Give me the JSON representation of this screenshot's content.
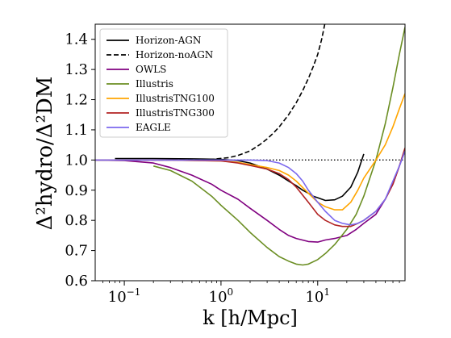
{
  "chart_data": {
    "type": "line",
    "xscale": "log",
    "xlim": [
      0.05,
      80
    ],
    "ylim": [
      0.6,
      1.45
    ],
    "xlabel": "k [h/Mpc]",
    "ylabel": "Δ²hydro/Δ²DM",
    "xticks": [
      {
        "value": 0.1,
        "base": "10",
        "exp": "−1"
      },
      {
        "value": 1,
        "base": "10",
        "exp": "0"
      },
      {
        "value": 10,
        "base": "10",
        "exp": "1"
      }
    ],
    "yticks": [
      "0.6",
      "0.7",
      "0.8",
      "0.9",
      "1.0",
      "1.1",
      "1.2",
      "1.3",
      "1.4"
    ],
    "reference_line": {
      "y": 1.0,
      "style": "dotted",
      "color": "#000000"
    },
    "legend_position": "top-left",
    "series": [
      {
        "name": "Horizon-AGN",
        "color": "#000000",
        "dash": "solid",
        "x": [
          0.08,
          0.2,
          0.5,
          1.0,
          1.5,
          2.0,
          3.0,
          4.0,
          5.0,
          6.0,
          7.0,
          8.0,
          9.0,
          10.0,
          12.0,
          15.0,
          18.0,
          22.0,
          26.0,
          30.0
        ],
        "y": [
          1.005,
          1.005,
          1.004,
          1.002,
          0.998,
          0.99,
          0.97,
          0.95,
          0.93,
          0.915,
          0.9,
          0.89,
          0.88,
          0.875,
          0.866,
          0.868,
          0.88,
          0.91,
          0.96,
          1.02
        ]
      },
      {
        "name": "Horizon-noAGN",
        "color": "#000000",
        "dash": "dashed",
        "x": [
          0.08,
          0.3,
          0.8,
          1.2,
          1.5,
          2.0,
          2.5,
          3.0,
          3.5,
          4.0,
          5.0,
          6.0,
          7.0,
          8.0,
          9.0,
          10.0,
          11.0,
          12.0
        ],
        "y": [
          1.0,
          1.0,
          1.002,
          1.008,
          1.015,
          1.03,
          1.05,
          1.07,
          1.09,
          1.11,
          1.15,
          1.19,
          1.23,
          1.27,
          1.31,
          1.35,
          1.4,
          1.46
        ]
      },
      {
        "name": "OWLS",
        "color": "#800080",
        "dash": "solid",
        "x": [
          0.05,
          0.1,
          0.2,
          0.3,
          0.5,
          0.8,
          1.0,
          1.5,
          2.0,
          3.0,
          4.0,
          5.0,
          6.0,
          8.0,
          10.0,
          12.0,
          15.0,
          20.0,
          25.0,
          30.0,
          40.0,
          50.0,
          60.0,
          70.0,
          80.0
        ],
        "y": [
          1.0,
          0.998,
          0.99,
          0.975,
          0.95,
          0.92,
          0.9,
          0.87,
          0.84,
          0.8,
          0.77,
          0.75,
          0.74,
          0.73,
          0.728,
          0.735,
          0.74,
          0.75,
          0.77,
          0.79,
          0.82,
          0.87,
          0.92,
          0.98,
          1.03
        ]
      },
      {
        "name": "Illustris",
        "color": "#6b8e23",
        "dash": "solid",
        "x": [
          0.2,
          0.3,
          0.5,
          0.8,
          1.0,
          1.5,
          2.0,
          3.0,
          4.0,
          5.0,
          6.0,
          7.0,
          8.0,
          10.0,
          12.0,
          15.0,
          20.0,
          25.0,
          30.0,
          40.0,
          50.0,
          60.0,
          70.0,
          80.0
        ],
        "y": [
          0.98,
          0.965,
          0.93,
          0.88,
          0.85,
          0.8,
          0.76,
          0.71,
          0.68,
          0.665,
          0.655,
          0.652,
          0.655,
          0.67,
          0.69,
          0.72,
          0.77,
          0.82,
          0.88,
          1.0,
          1.12,
          1.24,
          1.35,
          1.44
        ]
      },
      {
        "name": "IllustrisTNG100",
        "color": "#ffa500",
        "dash": "solid",
        "x": [
          0.05,
          0.3,
          1.0,
          1.5,
          2.0,
          3.0,
          4.0,
          5.0,
          6.0,
          8.0,
          10.0,
          12.0,
          15.0,
          18.0,
          22.0,
          26.0,
          30.0,
          40.0,
          50.0,
          60.0,
          70.0,
          80.0
        ],
        "y": [
          1.0,
          1.0,
          0.997,
          0.992,
          0.985,
          0.975,
          0.965,
          0.95,
          0.93,
          0.89,
          0.86,
          0.845,
          0.835,
          0.835,
          0.86,
          0.9,
          0.94,
          1.0,
          1.05,
          1.11,
          1.17,
          1.22
        ]
      },
      {
        "name": "IllustrisTNG300",
        "color": "#b22222",
        "dash": "solid",
        "x": [
          0.05,
          0.3,
          1.0,
          1.5,
          2.0,
          3.0,
          4.0,
          5.0,
          6.0,
          8.0,
          10.0,
          12.0,
          15.0,
          18.0,
          22.0,
          26.0,
          30.0,
          40.0,
          50.0,
          60.0,
          70.0,
          80.0
        ],
        "y": [
          1.0,
          1.0,
          0.997,
          0.99,
          0.982,
          0.97,
          0.955,
          0.935,
          0.91,
          0.86,
          0.82,
          0.8,
          0.785,
          0.78,
          0.78,
          0.79,
          0.8,
          0.83,
          0.87,
          0.92,
          0.98,
          1.04
        ]
      },
      {
        "name": "EAGLE",
        "color": "#7b68ee",
        "dash": "solid",
        "x": [
          0.05,
          0.3,
          1.0,
          2.0,
          3.0,
          4.0,
          5.0,
          6.0,
          7.0,
          8.0,
          10.0,
          12.0,
          15.0,
          18.0,
          22.0,
          26.0,
          30.0,
          40.0,
          50.0,
          60.0,
          70.0,
          80.0
        ],
        "y": [
          1.0,
          1.0,
          1.0,
          1.0,
          0.998,
          0.99,
          0.975,
          0.955,
          0.93,
          0.9,
          0.86,
          0.83,
          0.8,
          0.79,
          0.785,
          0.79,
          0.8,
          0.83,
          0.87,
          0.93,
          0.98,
          1.03
        ]
      }
    ]
  }
}
